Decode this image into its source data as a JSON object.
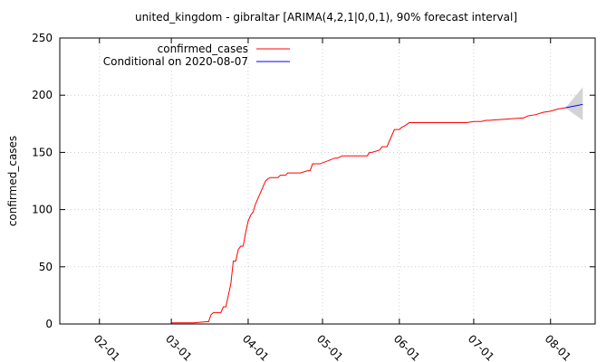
{
  "chart_data": {
    "type": "line",
    "title": "united_kingdom - gibraltar [ARIMA(4,2,1|0,0,1), 90% forecast interval]",
    "xlabel": "",
    "ylabel": "confirmed_cases",
    "ylim": [
      0,
      250
    ],
    "xlim": [
      "2020-01-16",
      "2020-08-19"
    ],
    "yticks": [
      "0",
      "50",
      "100",
      "150",
      "200",
      "250"
    ],
    "xticks": [
      {
        "date": "2020-02-01",
        "label": "02-01"
      },
      {
        "date": "2020-03-01",
        "label": "03-01"
      },
      {
        "date": "2020-04-01",
        "label": "04-01"
      },
      {
        "date": "2020-05-01",
        "label": "05-01"
      },
      {
        "date": "2020-06-01",
        "label": "06-01"
      },
      {
        "date": "2020-07-01",
        "label": "07-01"
      },
      {
        "date": "2020-08-01",
        "label": "08-01"
      }
    ],
    "grid": true,
    "legend_position": "top-left",
    "series": [
      {
        "name": "confirmed_cases",
        "color": "#ff0000",
        "x": [
          "2020-03-01",
          "2020-03-04",
          "2020-03-10",
          "2020-03-15",
          "2020-03-16",
          "2020-03-17",
          "2020-03-18",
          "2020-03-19",
          "2020-03-20",
          "2020-03-21",
          "2020-03-22",
          "2020-03-23",
          "2020-03-24",
          "2020-03-25",
          "2020-03-26",
          "2020-03-27",
          "2020-03-28",
          "2020-03-29",
          "2020-03-30",
          "2020-03-31",
          "2020-04-01",
          "2020-04-02",
          "2020-04-03",
          "2020-04-04",
          "2020-04-05",
          "2020-04-06",
          "2020-04-07",
          "2020-04-08",
          "2020-04-09",
          "2020-04-10",
          "2020-04-11",
          "2020-04-12",
          "2020-04-13",
          "2020-04-14",
          "2020-04-16",
          "2020-04-17",
          "2020-04-18",
          "2020-04-21",
          "2020-04-22",
          "2020-04-25",
          "2020-04-26",
          "2020-04-27",
          "2020-04-28",
          "2020-04-30",
          "2020-05-06",
          "2020-05-07",
          "2020-05-09",
          "2020-05-15",
          "2020-05-19",
          "2020-05-20",
          "2020-05-21",
          "2020-05-24",
          "2020-05-25",
          "2020-05-26",
          "2020-05-27",
          "2020-05-28",
          "2020-05-30",
          "2020-05-31",
          "2020-06-01",
          "2020-06-02",
          "2020-06-03",
          "2020-06-05",
          "2020-06-25",
          "2020-06-28",
          "2020-07-01",
          "2020-07-04",
          "2020-07-06",
          "2020-07-07",
          "2020-07-20",
          "2020-07-21",
          "2020-07-22",
          "2020-07-23",
          "2020-07-26",
          "2020-07-29",
          "2020-08-01",
          "2020-08-04",
          "2020-08-07"
        ],
        "values": [
          1,
          1,
          1,
          2,
          2,
          8,
          10,
          10,
          10,
          10,
          15,
          15,
          25,
          35,
          55,
          55,
          65,
          68,
          68,
          80,
          90,
          95,
          98,
          105,
          110,
          115,
          120,
          125,
          127,
          128,
          128,
          128,
          128,
          130,
          130,
          132,
          132,
          132,
          132,
          134,
          134,
          140,
          140,
          140,
          145,
          145,
          147,
          147,
          147,
          150,
          150,
          152,
          155,
          155,
          155,
          160,
          170,
          170,
          170,
          172,
          173,
          176,
          176,
          176,
          177,
          177,
          178,
          178,
          180,
          180,
          181,
          182,
          183,
          185,
          186,
          188,
          189
        ]
      },
      {
        "name": "Conditional on 2020-08-07",
        "color": "#0000ff",
        "x": [
          "2020-08-07",
          "2020-08-14"
        ],
        "values": [
          189,
          192
        ]
      }
    ],
    "forecast_interval": {
      "level": "90%",
      "start": "2020-08-07",
      "end": "2020-08-14",
      "start_value": 189,
      "lower_end": 178,
      "upper_end": 207
    }
  }
}
